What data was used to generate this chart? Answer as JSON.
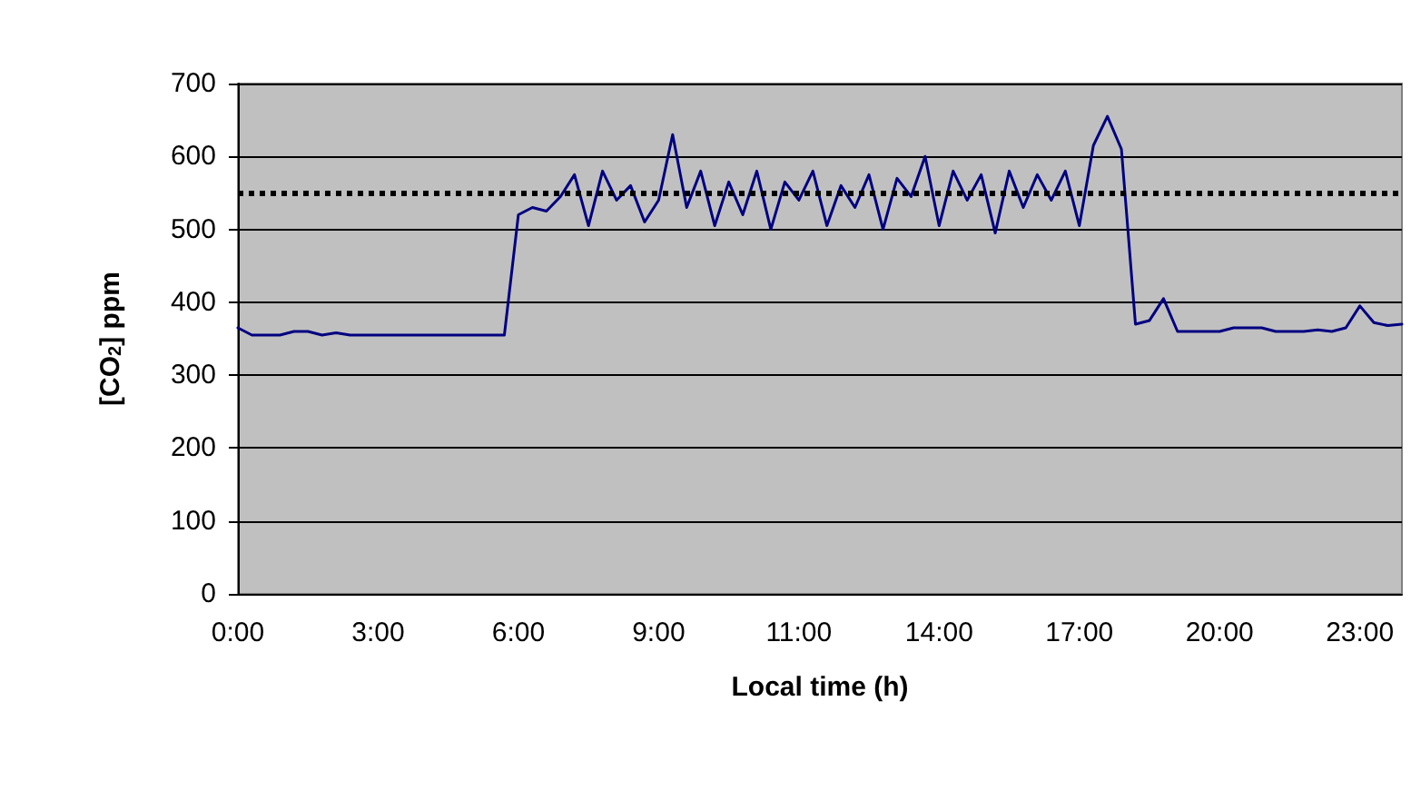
{
  "chart_data": {
    "type": "line",
    "xlabel": "Local time (h)",
    "ylabel": "[CO$_{2}$] ppm",
    "categories": [
      "0:00",
      null,
      null,
      null,
      null,
      null,
      null,
      null,
      null,
      null,
      "3:00",
      null,
      null,
      null,
      null,
      null,
      null,
      null,
      null,
      null,
      "6:00",
      null,
      null,
      null,
      null,
      null,
      null,
      null,
      null,
      null,
      "9:00",
      null,
      null,
      null,
      null,
      null,
      null,
      null,
      null,
      null,
      "11:00",
      null,
      null,
      null,
      null,
      null,
      null,
      null,
      null,
      null,
      "14:00",
      null,
      null,
      null,
      null,
      null,
      null,
      null,
      null,
      null,
      "17:00",
      null,
      null,
      null,
      null,
      null,
      null,
      null,
      null,
      null,
      "20:00",
      null,
      null,
      null,
      null,
      null,
      null,
      null,
      null,
      null,
      "23:00",
      null,
      null,
      null
    ],
    "series": [
      {
        "color": "#000080",
        "values": [
          365,
          355,
          355,
          355,
          360,
          360,
          355,
          358,
          355,
          355,
          355,
          355,
          355,
          355,
          355,
          355,
          355,
          355,
          355,
          355,
          520,
          530,
          525,
          545,
          575,
          505,
          580,
          540,
          560,
          510,
          540,
          630,
          530,
          580,
          505,
          565,
          520,
          580,
          500,
          565,
          540,
          580,
          505,
          560,
          530,
          575,
          500,
          570,
          545,
          600,
          505,
          580,
          540,
          575,
          495,
          580,
          530,
          575,
          540,
          580,
          505,
          615,
          655,
          610,
          370,
          375,
          405,
          360,
          360,
          360,
          360,
          365,
          365,
          365,
          360,
          360,
          360,
          362,
          360,
          365,
          395,
          372,
          368,
          370
        ]
      }
    ],
    "ylim": [
      0,
      700
    ],
    "yticks": [
      0,
      100,
      200,
      300,
      400,
      500,
      600,
      700
    ],
    "grid": "y",
    "marker": "none",
    "line_style": "solid",
    "ref_lines": [
      {
        "axis": "y",
        "value": 550,
        "color": "#000000",
        "line_style": "dotted"
      }
    ]
  }
}
